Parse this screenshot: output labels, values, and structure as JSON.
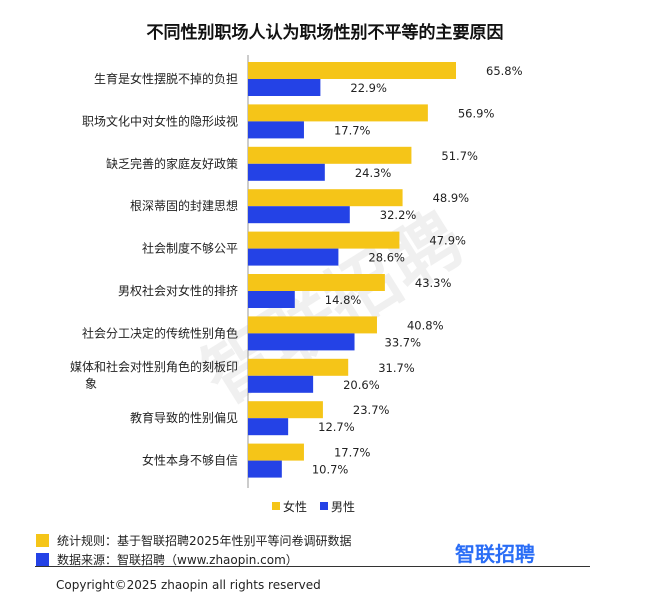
{
  "chart_data": {
    "type": "bar",
    "title": "不同性别职场人认为职场性别不平等的主要原因",
    "categories": [
      "生育是女性摆脱不掉的负担",
      "职场文化中对女性的隐形歧视",
      "缺乏完善的家庭友好政策",
      "根深蒂固的封建思想",
      "社会制度不够公平",
      "男权社会对女性的排挤",
      "社会分工决定的传统性别角色",
      "媒体和社会对性别角色的刻板印象",
      "教育导致的性别偏见",
      "女性本身不够自信"
    ],
    "series": [
      {
        "name": "女性",
        "color": "#f5c518",
        "values": [
          65.8,
          56.9,
          51.7,
          48.9,
          47.9,
          43.3,
          40.8,
          31.7,
          23.7,
          17.7
        ],
        "labels": [
          "65.8%",
          "56.9%",
          "51.7%",
          "48.9%",
          "47.9%",
          "43.3%",
          "40.8%",
          "31.7%",
          "23.7%",
          "17.7%"
        ]
      },
      {
        "name": "男性",
        "color": "#2442e6",
        "values": [
          22.9,
          17.7,
          24.3,
          32.2,
          28.6,
          14.8,
          33.7,
          20.6,
          12.7,
          10.7
        ],
        "labels": [
          "22.9%",
          "17.7%",
          "24.3%",
          "32.2%",
          "28.6%",
          "14.8%",
          "33.7%",
          "20.6%",
          "12.7%",
          "10.7%"
        ]
      }
    ],
    "xlim": [
      0,
      70
    ],
    "legend_position": "bottom-right",
    "grid": false
  },
  "footer": {
    "note_stats": "统计规则：基于智联招聘2025年性别平等问卷调研数据",
    "note_source": "数据来源：智联招聘（www.zhaopin.com）",
    "brand": "智联招聘",
    "copyright": "Copyright©2025 zhaopin all rights reserved"
  },
  "watermark": "智联招聘",
  "colors": {
    "note_stats_swatch": "#f5c518",
    "note_source_swatch": "#2442e6",
    "brand": "#2a6df6"
  }
}
